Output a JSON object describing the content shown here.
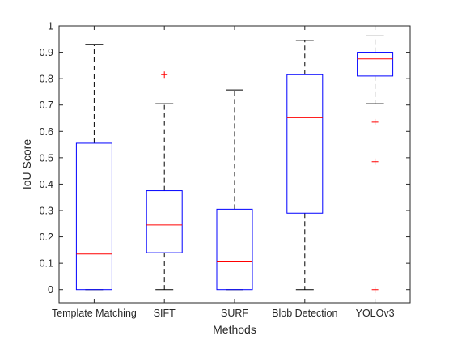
{
  "chart_data": {
    "type": "boxplot",
    "title": "",
    "xlabel": "Methods",
    "ylabel": "IoU Score",
    "ylim": [
      -0.05,
      1.0
    ],
    "yticks": [
      0,
      0.1,
      0.2,
      0.3,
      0.4,
      0.5,
      0.6,
      0.7,
      0.8,
      0.9,
      1
    ],
    "ytick_labels": [
      "0",
      "0.1",
      "0.2",
      "0.3",
      "0.4",
      "0.5",
      "0.6",
      "0.7",
      "0.8",
      "0.9",
      "1"
    ],
    "grid": false,
    "categories": [
      "Template Matching",
      "SIFT",
      "SURF",
      "Blob Detection",
      "YOLOv3"
    ],
    "boxes": [
      {
        "whisker_low": 0.0,
        "q1": 0.0,
        "median": 0.135,
        "q3": 0.555,
        "whisker_high": 0.93,
        "outliers": []
      },
      {
        "whisker_low": 0.0,
        "q1": 0.14,
        "median": 0.245,
        "q3": 0.375,
        "whisker_high": 0.705,
        "outliers": [
          0.815
        ]
      },
      {
        "whisker_low": 0.0,
        "q1": 0.0,
        "median": 0.105,
        "q3": 0.305,
        "whisker_high": 0.757,
        "outliers": []
      },
      {
        "whisker_low": 0.0,
        "q1": 0.29,
        "median": 0.652,
        "q3": 0.815,
        "whisker_high": 0.945,
        "outliers": []
      },
      {
        "whisker_low": 0.705,
        "q1": 0.81,
        "median": 0.875,
        "q3": 0.9,
        "whisker_high": 0.962,
        "outliers": [
          0.635,
          0.485,
          0.0
        ]
      }
    ],
    "colors": {
      "box": "#0000ff",
      "median": "#ff0000",
      "whisker": "#000000",
      "outlier": "#ff0000",
      "axes": "#262626"
    }
  }
}
